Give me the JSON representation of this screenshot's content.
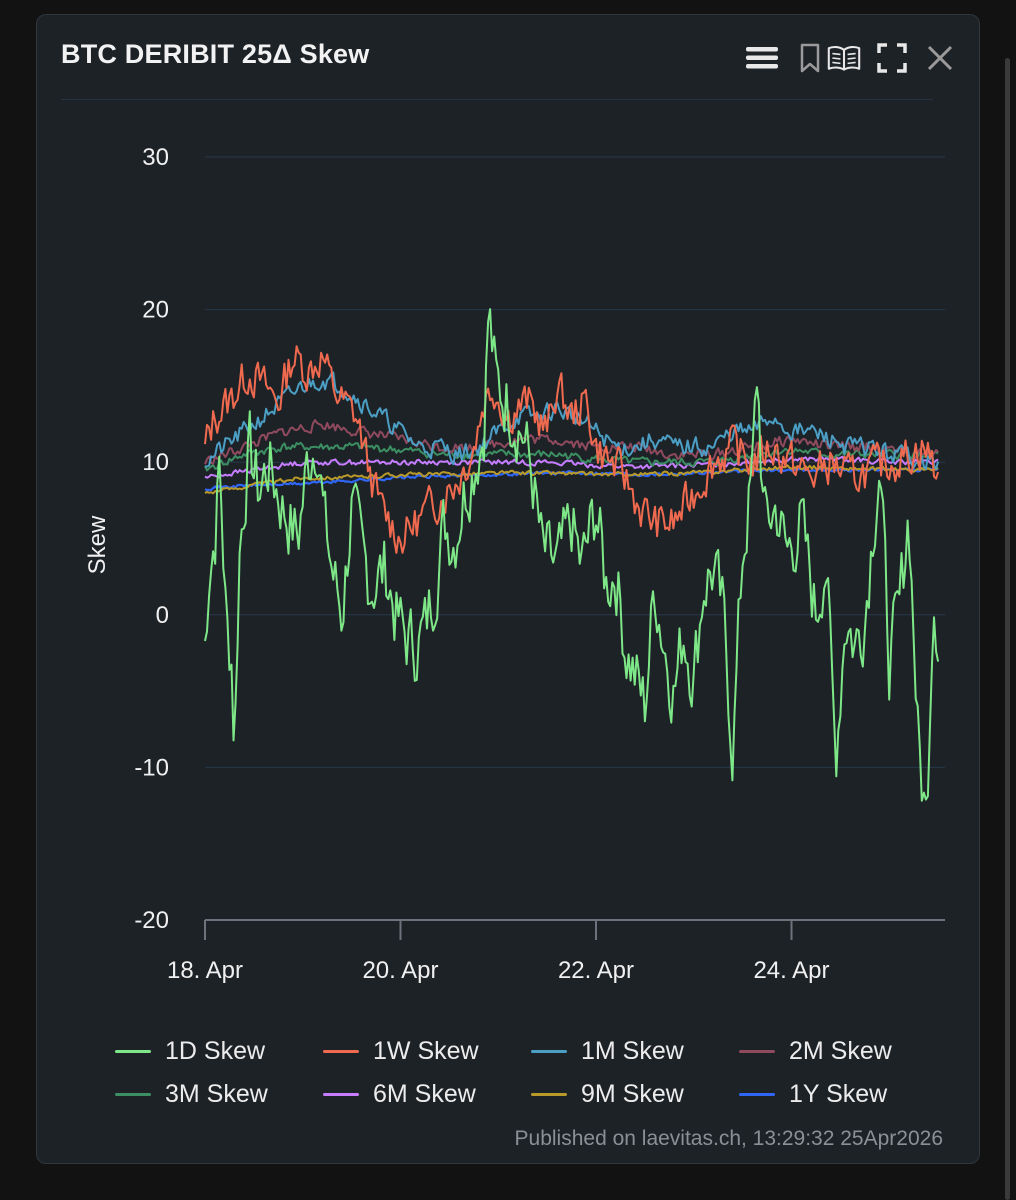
{
  "header": {
    "title": "BTC DERIBIT 25Δ Skew"
  },
  "toolbar": {
    "icons": [
      "menu-icon",
      "bookmark-icon",
      "open-book-icon",
      "fullscreen-icon",
      "close-icon"
    ]
  },
  "footer": {
    "credit": "Published on laevitas.ch, 13:29:32 25Apr2026"
  },
  "colors": {
    "background": "#1d2227",
    "grid": "#26384a",
    "axis": "#6c737c"
  },
  "chart_data": {
    "type": "line",
    "title": "BTC DERIBIT 25Δ Skew",
    "xlabel": "",
    "ylabel": "Skew",
    "ylim": [
      -20,
      30
    ],
    "xlim": [
      0,
      7.55
    ],
    "x_unit": "days since 18 Apr",
    "yticks": [
      30,
      20,
      10,
      0,
      -10,
      -20
    ],
    "xticks": [
      {
        "x": 0,
        "label": "18. Apr"
      },
      {
        "x": 2,
        "label": "20. Apr"
      },
      {
        "x": 4,
        "label": "22. Apr"
      },
      {
        "x": 6,
        "label": "24. Apr"
      }
    ],
    "grid": true,
    "legend": "bottom",
    "series": [
      {
        "name": "1D Skew",
        "color": "#7ee787",
        "width": 2,
        "anchors": [
          [
            0,
            -2
          ],
          [
            0.04,
            3
          ],
          [
            0.1,
            5
          ],
          [
            0.15,
            10
          ],
          [
            0.22,
            -1
          ],
          [
            0.28,
            -3
          ],
          [
            0.3,
            -9.5
          ],
          [
            0.35,
            4
          ],
          [
            0.45,
            11
          ],
          [
            0.55,
            8
          ],
          [
            0.65,
            10
          ],
          [
            0.8,
            7
          ],
          [
            0.95,
            5
          ],
          [
            1.05,
            10
          ],
          [
            1.15,
            12
          ],
          [
            1.22,
            6
          ],
          [
            1.3,
            3
          ],
          [
            1.4,
            0
          ],
          [
            1.5,
            7
          ],
          [
            1.6,
            4
          ],
          [
            1.7,
            2
          ],
          [
            1.85,
            3
          ],
          [
            1.95,
            0
          ],
          [
            2.05,
            -1.5
          ],
          [
            2.15,
            -2
          ],
          [
            2.25,
            -1
          ],
          [
            2.35,
            2
          ],
          [
            2.45,
            6
          ],
          [
            2.55,
            5
          ],
          [
            2.65,
            8
          ],
          [
            2.75,
            10
          ],
          [
            2.85,
            12
          ],
          [
            2.9,
            20
          ],
          [
            2.98,
            15
          ],
          [
            3.1,
            14
          ],
          [
            3.25,
            12
          ],
          [
            3.35,
            9
          ],
          [
            3.45,
            4
          ],
          [
            3.6,
            3
          ],
          [
            3.75,
            6
          ],
          [
            3.85,
            3
          ],
          [
            4.0,
            7
          ],
          [
            4.1,
            2
          ],
          [
            4.2,
            3
          ],
          [
            4.3,
            -2
          ],
          [
            4.4,
            -4
          ],
          [
            4.5,
            -6
          ],
          [
            4.6,
            2
          ],
          [
            4.7,
            -2
          ],
          [
            4.8,
            -5
          ],
          [
            4.9,
            -1
          ],
          [
            5.0,
            -4
          ],
          [
            5.1,
            2
          ],
          [
            5.2,
            3
          ],
          [
            5.3,
            0
          ],
          [
            5.4,
            -8.8
          ],
          [
            5.5,
            4
          ],
          [
            5.6,
            9
          ],
          [
            5.65,
            16
          ],
          [
            5.72,
            6
          ],
          [
            5.85,
            7
          ],
          [
            5.95,
            4
          ],
          [
            6.1,
            6
          ],
          [
            6.25,
            0
          ],
          [
            6.35,
            4
          ],
          [
            6.45,
            -9.5
          ],
          [
            6.55,
            0
          ],
          [
            6.65,
            -2
          ],
          [
            6.75,
            0
          ],
          [
            6.82,
            5
          ],
          [
            6.9,
            10
          ],
          [
            7.0,
            -3
          ],
          [
            7.1,
            0
          ],
          [
            7.2,
            7
          ],
          [
            7.3,
            -9
          ],
          [
            7.38,
            -13.5
          ],
          [
            7.45,
            2
          ],
          [
            7.5,
            -1
          ]
        ],
        "noise": 3.6,
        "seed": 7
      },
      {
        "name": "1W Skew",
        "color": "#f06a4f",
        "width": 2,
        "anchors": [
          [
            0,
            11
          ],
          [
            0.1,
            13
          ],
          [
            0.25,
            14
          ],
          [
            0.45,
            16
          ],
          [
            0.6,
            15
          ],
          [
            0.75,
            14
          ],
          [
            0.9,
            17
          ],
          [
            1.05,
            16
          ],
          [
            1.2,
            17
          ],
          [
            1.3,
            15
          ],
          [
            1.4,
            14
          ],
          [
            1.55,
            13
          ],
          [
            1.7,
            9
          ],
          [
            1.8,
            7
          ],
          [
            1.9,
            6
          ],
          [
            2.0,
            5
          ],
          [
            2.15,
            6
          ],
          [
            2.3,
            7
          ],
          [
            2.45,
            8
          ],
          [
            2.6,
            9
          ],
          [
            2.75,
            11
          ],
          [
            2.85,
            14
          ],
          [
            2.95,
            15
          ],
          [
            3.1,
            13
          ],
          [
            3.3,
            14
          ],
          [
            3.5,
            12
          ],
          [
            3.6,
            15
          ],
          [
            3.75,
            13
          ],
          [
            3.9,
            14
          ],
          [
            4.0,
            11
          ],
          [
            4.15,
            10
          ],
          [
            4.3,
            9
          ],
          [
            4.45,
            7
          ],
          [
            4.6,
            6
          ],
          [
            4.8,
            6
          ],
          [
            5.0,
            8
          ],
          [
            5.2,
            10
          ],
          [
            5.4,
            11
          ],
          [
            5.6,
            10
          ],
          [
            5.8,
            11
          ],
          [
            6.0,
            10
          ],
          [
            6.2,
            9
          ],
          [
            6.4,
            10
          ],
          [
            6.6,
            9
          ],
          [
            6.8,
            9.5
          ],
          [
            7.0,
            10
          ],
          [
            7.2,
            10.5
          ],
          [
            7.35,
            11
          ],
          [
            7.45,
            10
          ],
          [
            7.5,
            9
          ]
        ],
        "noise": 1.9,
        "seed": 13
      },
      {
        "name": "1M Skew",
        "color": "#4b9ec4",
        "width": 2,
        "anchors": [
          [
            0,
            10
          ],
          [
            0.2,
            11
          ],
          [
            0.4,
            12
          ],
          [
            0.6,
            13
          ],
          [
            0.8,
            14
          ],
          [
            1.0,
            15
          ],
          [
            1.2,
            15.5
          ],
          [
            1.4,
            15
          ],
          [
            1.6,
            14
          ],
          [
            1.8,
            13
          ],
          [
            2.0,
            12
          ],
          [
            2.2,
            11
          ],
          [
            2.4,
            11
          ],
          [
            2.6,
            10.5
          ],
          [
            2.8,
            11
          ],
          [
            3.0,
            12
          ],
          [
            3.2,
            13
          ],
          [
            3.4,
            13
          ],
          [
            3.6,
            13.5
          ],
          [
            3.8,
            13
          ],
          [
            4.0,
            12
          ],
          [
            4.2,
            11
          ],
          [
            4.4,
            11
          ],
          [
            4.6,
            11.5
          ],
          [
            4.8,
            11
          ],
          [
            5.0,
            11
          ],
          [
            5.2,
            11
          ],
          [
            5.4,
            12
          ],
          [
            5.6,
            12
          ],
          [
            5.8,
            13
          ],
          [
            6.0,
            12
          ],
          [
            6.2,
            12
          ],
          [
            6.4,
            11.5
          ],
          [
            6.6,
            11
          ],
          [
            6.8,
            11
          ],
          [
            7.0,
            10.5
          ],
          [
            7.2,
            10.5
          ],
          [
            7.4,
            10
          ],
          [
            7.5,
            10
          ]
        ],
        "noise": 0.9,
        "seed": 21
      },
      {
        "name": "2M Skew",
        "color": "#8f4a5e",
        "width": 2,
        "anchors": [
          [
            0,
            10
          ],
          [
            0.4,
            11
          ],
          [
            0.8,
            12
          ],
          [
            1.2,
            12.5
          ],
          [
            1.6,
            12
          ],
          [
            2.0,
            11.5
          ],
          [
            2.4,
            11
          ],
          [
            2.8,
            11
          ],
          [
            3.2,
            11.5
          ],
          [
            3.6,
            11.5
          ],
          [
            4.0,
            11
          ],
          [
            4.4,
            11
          ],
          [
            4.8,
            10.5
          ],
          [
            5.2,
            10.5
          ],
          [
            5.6,
            11
          ],
          [
            6.0,
            11.5
          ],
          [
            6.4,
            11
          ],
          [
            6.8,
            11
          ],
          [
            7.2,
            10.5
          ],
          [
            7.5,
            10.5
          ]
        ],
        "noise": 0.5,
        "seed": 33
      },
      {
        "name": "3M Skew",
        "color": "#3c8f62",
        "width": 2,
        "anchors": [
          [
            0,
            9.5
          ],
          [
            0.4,
            10.5
          ],
          [
            0.8,
            11
          ],
          [
            1.2,
            11
          ],
          [
            1.6,
            11
          ],
          [
            2.0,
            10.8
          ],
          [
            2.4,
            10.5
          ],
          [
            2.8,
            10.5
          ],
          [
            3.2,
            10.5
          ],
          [
            3.6,
            10.5
          ],
          [
            4.0,
            10.2
          ],
          [
            4.4,
            10
          ],
          [
            4.8,
            10
          ],
          [
            5.2,
            10
          ],
          [
            5.6,
            10.5
          ],
          [
            6.0,
            10.8
          ],
          [
            6.4,
            10.5
          ],
          [
            6.8,
            10.5
          ],
          [
            7.2,
            10.5
          ],
          [
            7.5,
            10.5
          ]
        ],
        "noise": 0.4,
        "seed": 41
      },
      {
        "name": "6M Skew",
        "color": "#c77dff",
        "width": 2,
        "anchors": [
          [
            0,
            9
          ],
          [
            0.5,
            9.5
          ],
          [
            1.0,
            10
          ],
          [
            1.5,
            10
          ],
          [
            2.0,
            10
          ],
          [
            2.5,
            10
          ],
          [
            3.0,
            10
          ],
          [
            3.5,
            10
          ],
          [
            4.0,
            9.8
          ],
          [
            4.5,
            9.7
          ],
          [
            5.0,
            9.8
          ],
          [
            5.5,
            10
          ],
          [
            6.0,
            10.2
          ],
          [
            6.5,
            10.2
          ],
          [
            7.0,
            10
          ],
          [
            7.5,
            10
          ]
        ],
        "noise": 0.25,
        "seed": 55
      },
      {
        "name": "9M Skew",
        "color": "#b89a2a",
        "width": 2,
        "anchors": [
          [
            0,
            8
          ],
          [
            0.5,
            8.5
          ],
          [
            1.0,
            9
          ],
          [
            1.5,
            9
          ],
          [
            2.0,
            9.2
          ],
          [
            2.5,
            9.2
          ],
          [
            3.0,
            9.3
          ],
          [
            3.5,
            9.3
          ],
          [
            4.0,
            9.2
          ],
          [
            4.5,
            9.2
          ],
          [
            5.0,
            9.3
          ],
          [
            5.5,
            9.5
          ],
          [
            6.0,
            9.7
          ],
          [
            6.5,
            9.6
          ],
          [
            7.0,
            9.5
          ],
          [
            7.5,
            9.5
          ]
        ],
        "noise": 0.2,
        "seed": 63
      },
      {
        "name": "1Y Skew",
        "color": "#2f66f6",
        "width": 2.2,
        "anchors": [
          [
            0,
            8.3
          ],
          [
            0.5,
            8.5
          ],
          [
            1.0,
            8.6
          ],
          [
            1.5,
            8.8
          ],
          [
            2.0,
            9
          ],
          [
            2.5,
            9.1
          ],
          [
            3.0,
            9.2
          ],
          [
            3.5,
            9.3
          ],
          [
            4.0,
            9.3
          ],
          [
            4.5,
            9.2
          ],
          [
            5.0,
            9.3
          ],
          [
            5.5,
            9.4
          ],
          [
            6.0,
            9.5
          ],
          [
            6.5,
            9.5
          ],
          [
            7.0,
            9.5
          ],
          [
            7.5,
            9.5
          ]
        ],
        "noise": 0.15,
        "seed": 71
      }
    ]
  }
}
